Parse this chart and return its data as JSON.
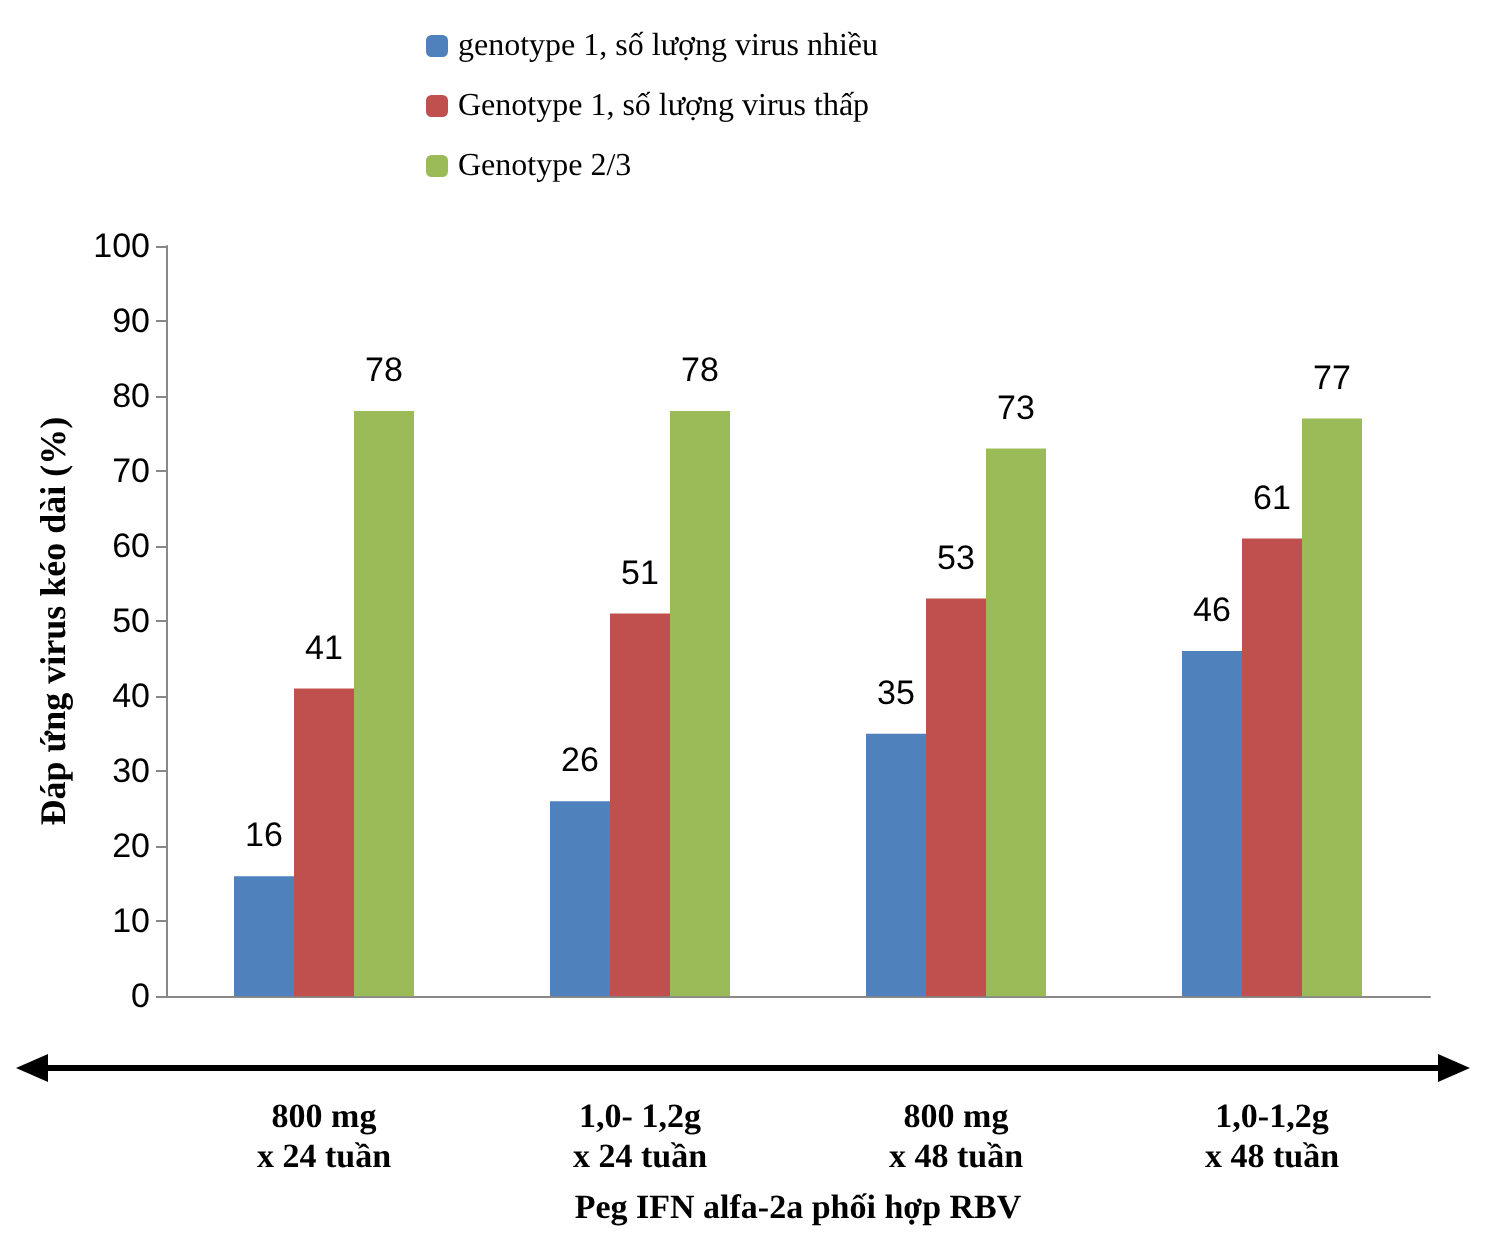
{
  "chart_data": {
    "type": "bar",
    "ylabel": "Đáp ứng virus kéo dài (%)",
    "xlabel": "Peg IFN alfa-2a phối hợp RBV",
    "categories": [
      "800 mg\nx 24 tuần",
      "1,0- 1,2g\nx 24 tuần",
      "800 mg\nx 48 tuần",
      "1,0-1,2g\nx 48 tuần"
    ],
    "series": [
      {
        "name": "genotype 1, số lượng virus nhiều",
        "color": "#4f81bd",
        "values": [
          16,
          26,
          35,
          46
        ]
      },
      {
        "name": "Genotype 1, số lượng virus thấp",
        "color": "#c0504d",
        "values": [
          41,
          51,
          53,
          61
        ]
      },
      {
        "name": "Genotype 2/3",
        "color": "#9bbb59",
        "values": [
          78,
          78,
          73,
          77
        ]
      }
    ],
    "ylim": [
      0,
      100
    ],
    "yticks": [
      0,
      10,
      20,
      30,
      40,
      50,
      60,
      70,
      80,
      90,
      100
    ],
    "grid": false,
    "legend": "top",
    "data_labels": true
  }
}
